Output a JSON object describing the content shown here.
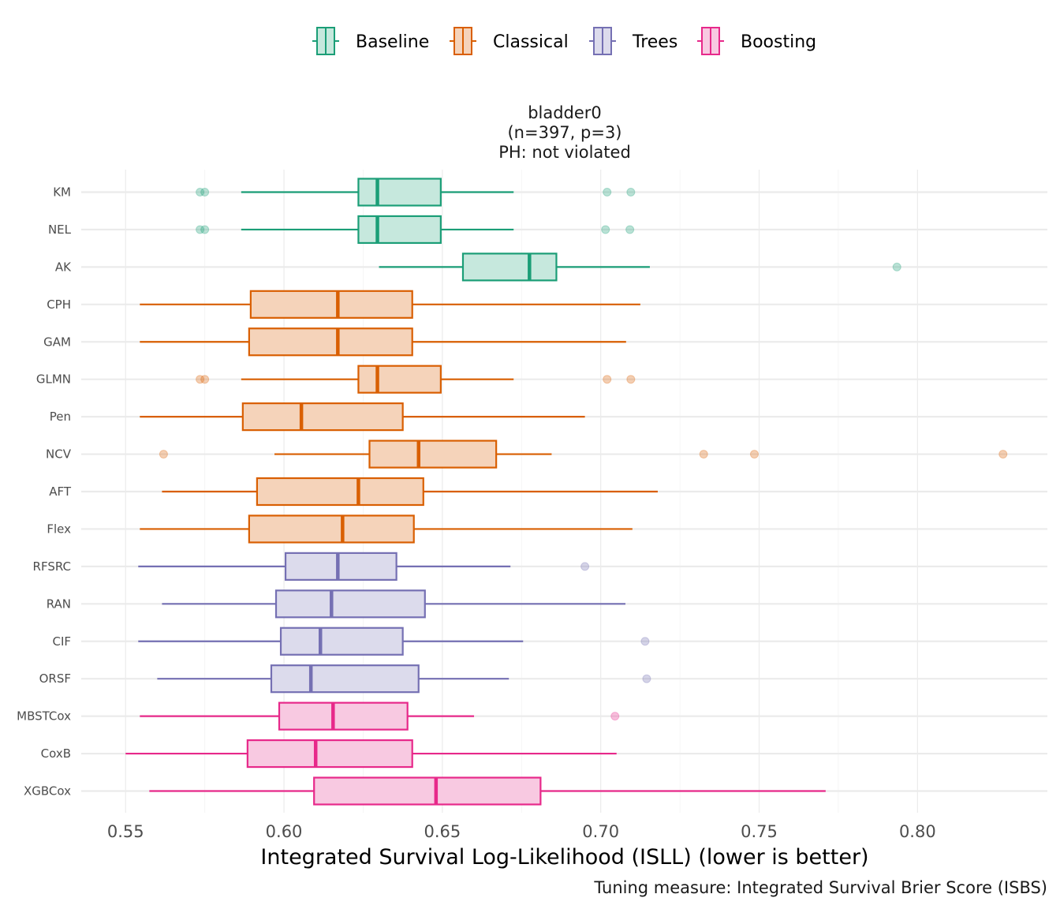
{
  "chart_data": {
    "type": "boxplot",
    "orientation": "horizontal",
    "facet_title": [
      "bladder0",
      "(n=397, p=3)",
      "PH: not violated"
    ],
    "xlabel": "Integrated Survival Log-Likelihood (ISLL) (lower is better)",
    "caption": "Tuning measure: Integrated Survival Brier Score (ISBS)",
    "xlim": [
      0.536,
      0.841
    ],
    "x_ticks": [
      {
        "value": 0.55,
        "label": "0.55"
      },
      {
        "value": 0.6,
        "label": "0.60"
      },
      {
        "value": 0.65,
        "label": "0.65"
      },
      {
        "value": 0.7,
        "label": "0.70"
      },
      {
        "value": 0.75,
        "label": "0.75"
      },
      {
        "value": 0.8,
        "label": "0.80"
      }
    ],
    "grid": true,
    "legend_position": "top",
    "groups": [
      {
        "name": "Baseline",
        "color": "#1b9e77",
        "fill": "#c6e8dd"
      },
      {
        "name": "Classical",
        "color": "#d95f02",
        "fill": "#f5d3ba"
      },
      {
        "name": "Trees",
        "color": "#7570b3",
        "fill": "#dcdbec"
      },
      {
        "name": "Boosting",
        "color": "#e7298a",
        "fill": "#f8c9e1"
      }
    ],
    "series": [
      {
        "label": "KM",
        "group": "Baseline",
        "whisker_low": 0.5865,
        "q1": 0.6235,
        "median": 0.6295,
        "q3": 0.6495,
        "whisker_high": 0.6725,
        "outliers": [
          0.5735,
          0.575,
          0.702,
          0.7095
        ]
      },
      {
        "label": "NEL",
        "group": "Baseline",
        "whisker_low": 0.5865,
        "q1": 0.6235,
        "median": 0.6295,
        "q3": 0.6495,
        "whisker_high": 0.6725,
        "outliers": [
          0.5735,
          0.575,
          0.7015,
          0.7092
        ]
      },
      {
        "label": "AK",
        "group": "Baseline",
        "whisker_low": 0.63,
        "q1": 0.6565,
        "median": 0.6775,
        "q3": 0.686,
        "whisker_high": 0.7155,
        "outliers": [
          0.7935
        ]
      },
      {
        "label": "CPH",
        "group": "Classical",
        "whisker_low": 0.5545,
        "q1": 0.5895,
        "median": 0.617,
        "q3": 0.6405,
        "whisker_high": 0.7125,
        "outliers": []
      },
      {
        "label": "GAM",
        "group": "Classical",
        "whisker_low": 0.5545,
        "q1": 0.589,
        "median": 0.617,
        "q3": 0.6405,
        "whisker_high": 0.708,
        "outliers": []
      },
      {
        "label": "GLMN",
        "group": "Classical",
        "whisker_low": 0.5865,
        "q1": 0.6235,
        "median": 0.6295,
        "q3": 0.6495,
        "whisker_high": 0.6725,
        "outliers": [
          0.5735,
          0.575,
          0.702,
          0.7095
        ]
      },
      {
        "label": "Pen",
        "group": "Classical",
        "whisker_low": 0.5545,
        "q1": 0.587,
        "median": 0.6055,
        "q3": 0.6375,
        "whisker_high": 0.695,
        "outliers": []
      },
      {
        "label": "NCV",
        "group": "Classical",
        "whisker_low": 0.597,
        "q1": 0.627,
        "median": 0.6425,
        "q3": 0.667,
        "whisker_high": 0.6845,
        "outliers": [
          0.562,
          0.7325,
          0.7485,
          0.827
        ]
      },
      {
        "label": "AFT",
        "group": "Classical",
        "whisker_low": 0.5615,
        "q1": 0.5915,
        "median": 0.6235,
        "q3": 0.644,
        "whisker_high": 0.718,
        "outliers": []
      },
      {
        "label": "Flex",
        "group": "Classical",
        "whisker_low": 0.5545,
        "q1": 0.589,
        "median": 0.6185,
        "q3": 0.641,
        "whisker_high": 0.71,
        "outliers": []
      },
      {
        "label": "RFSRC",
        "group": "Trees",
        "whisker_low": 0.554,
        "q1": 0.6005,
        "median": 0.617,
        "q3": 0.6355,
        "whisker_high": 0.6715,
        "outliers": [
          0.695
        ]
      },
      {
        "label": "RAN",
        "group": "Trees",
        "whisker_low": 0.5615,
        "q1": 0.5975,
        "median": 0.615,
        "q3": 0.6445,
        "whisker_high": 0.7078,
        "outliers": []
      },
      {
        "label": "CIF",
        "group": "Trees",
        "whisker_low": 0.554,
        "q1": 0.599,
        "median": 0.6115,
        "q3": 0.6375,
        "whisker_high": 0.6755,
        "outliers": [
          0.714
        ]
      },
      {
        "label": "ORSF",
        "group": "Trees",
        "whisker_low": 0.56,
        "q1": 0.596,
        "median": 0.6085,
        "q3": 0.6425,
        "whisker_high": 0.671,
        "outliers": [
          0.7145
        ]
      },
      {
        "label": "MBSTCox",
        "group": "Boosting",
        "whisker_low": 0.5545,
        "q1": 0.5985,
        "median": 0.6155,
        "q3": 0.639,
        "whisker_high": 0.66,
        "outliers": [
          0.7045
        ]
      },
      {
        "label": "CoxB",
        "group": "Boosting",
        "whisker_low": 0.55,
        "q1": 0.5885,
        "median": 0.61,
        "q3": 0.6405,
        "whisker_high": 0.705,
        "outliers": []
      },
      {
        "label": "XGBCox",
        "group": "Boosting",
        "whisker_low": 0.5575,
        "q1": 0.6095,
        "median": 0.648,
        "q3": 0.681,
        "whisker_high": 0.771,
        "outliers": []
      }
    ]
  }
}
